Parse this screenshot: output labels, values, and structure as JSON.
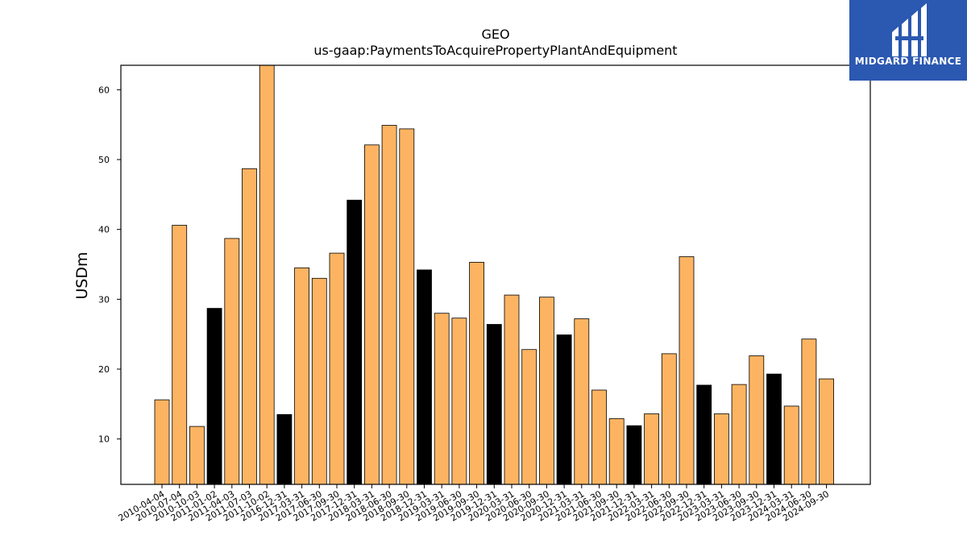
{
  "brand": {
    "name": "MIDGARD FINANCE",
    "bg_color": "#2b58b0"
  },
  "chart_data": {
    "type": "bar",
    "title": "GEO",
    "subtitle": "us-gaap:PaymentsToAcquirePropertyPlantAndEquipment",
    "xlabel": "",
    "ylabel": "USDm",
    "ylim": [
      3.5,
      63.5
    ],
    "yticks": [
      10,
      20,
      30,
      40,
      50,
      60
    ],
    "grid": false,
    "colors": {
      "quarter": "#fdb462",
      "annual": "#000000",
      "edge": "#000000"
    },
    "categories": [
      "2010-04-04",
      "2010-07-04",
      "2010-10-03",
      "2011-01-02",
      "2011-04-03",
      "2011-07-03",
      "2011-10-02",
      "2016-12-31",
      "2017-03-31",
      "2017-06-30",
      "2017-09-30",
      "2017-12-31",
      "2018-03-31",
      "2018-06-30",
      "2018-09-30",
      "2018-12-31",
      "2019-03-31",
      "2019-06-30",
      "2019-09-30",
      "2019-12-31",
      "2020-03-31",
      "2020-06-30",
      "2020-09-30",
      "2020-12-31",
      "2021-03-31",
      "2021-06-30",
      "2021-09-30",
      "2021-12-31",
      "2022-03-31",
      "2022-06-30",
      "2022-09-30",
      "2022-12-31",
      "2023-03-31",
      "2023-06-30",
      "2023-09-30",
      "2023-12-31",
      "2024-03-31",
      "2024-06-30",
      "2024-09-30"
    ],
    "values": [
      15.6,
      40.6,
      11.8,
      28.7,
      38.7,
      48.7,
      64.5,
      13.5,
      34.5,
      33.0,
      36.6,
      44.2,
      52.1,
      54.9,
      54.4,
      34.2,
      28.0,
      27.3,
      35.3,
      26.4,
      30.6,
      22.8,
      30.3,
      24.9,
      27.2,
      17.0,
      12.9,
      11.9,
      13.6,
      22.2,
      36.1,
      17.7,
      13.6,
      17.8,
      21.9,
      19.3,
      14.7,
      24.3,
      18.6
    ],
    "highlight": [
      false,
      false,
      false,
      true,
      false,
      false,
      false,
      true,
      false,
      false,
      false,
      true,
      false,
      false,
      false,
      true,
      false,
      false,
      false,
      true,
      false,
      false,
      false,
      true,
      false,
      false,
      false,
      true,
      false,
      false,
      false,
      true,
      false,
      false,
      false,
      true,
      false,
      false,
      false
    ]
  }
}
